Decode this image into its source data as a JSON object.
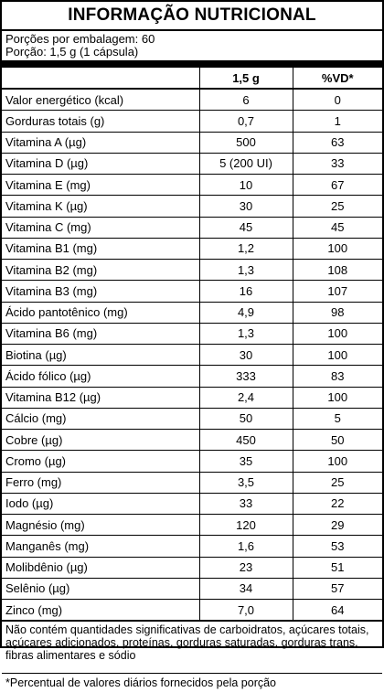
{
  "title": "INFORMAÇÃO NUTRICIONAL",
  "servings_per_package": "Porções por embalagem: 60",
  "serving_size": "Porção: 1,5 g (1 cápsula)",
  "header": {
    "amount": "1,5 g",
    "dv": "%VD*"
  },
  "rows": [
    {
      "name": "Valor energético (kcal)",
      "amount": "6",
      "dv": "0"
    },
    {
      "name": "Gorduras totais (g)",
      "amount": "0,7",
      "dv": "1"
    },
    {
      "name": "Vitamina A (µg)",
      "amount": "500",
      "dv": "63"
    },
    {
      "name": "Vitamina D (µg)",
      "amount": "5 (200 UI)",
      "dv": "33"
    },
    {
      "name": "Vitamina E (mg)",
      "amount": "10",
      "dv": "67"
    },
    {
      "name": "Vitamina K (µg)",
      "amount": "30",
      "dv": "25"
    },
    {
      "name": "Vitamina C (mg)",
      "amount": "45",
      "dv": "45"
    },
    {
      "name": "Vitamina B1 (mg)",
      "amount": "1,2",
      "dv": "100"
    },
    {
      "name": "Vitamina B2 (mg)",
      "amount": "1,3",
      "dv": "108"
    },
    {
      "name": "Vitamina B3 (mg)",
      "amount": "16",
      "dv": "107"
    },
    {
      "name": "Ácido pantotênico (mg)",
      "amount": "4,9",
      "dv": "98"
    },
    {
      "name": "Vitamina B6 (mg)",
      "amount": "1,3",
      "dv": "100"
    },
    {
      "name": "Biotina (µg)",
      "amount": "30",
      "dv": "100"
    },
    {
      "name": "Ácido fólico (µg)",
      "amount": "333",
      "dv": "83"
    },
    {
      "name": "Vitamina B12 (µg)",
      "amount": "2,4",
      "dv": "100"
    },
    {
      "name": "Cálcio (mg)",
      "amount": "50",
      "dv": "5"
    },
    {
      "name": "Cobre (µg)",
      "amount": "450",
      "dv": "50"
    },
    {
      "name": "Cromo (µg)",
      "amount": "35",
      "dv": "100"
    },
    {
      "name": "Ferro (mg)",
      "amount": "3,5",
      "dv": "25"
    },
    {
      "name": "Iodo (µg)",
      "amount": "33",
      "dv": "22"
    },
    {
      "name": "Magnésio (mg)",
      "amount": "120",
      "dv": "29"
    },
    {
      "name": "Manganês (mg)",
      "amount": "1,6",
      "dv": "53"
    },
    {
      "name": "Molibdênio (µg)",
      "amount": "23",
      "dv": "51"
    },
    {
      "name": "Selênio (µg)",
      "amount": "34",
      "dv": "57"
    },
    {
      "name": "Zinco (mg)",
      "amount": "7,0",
      "dv": "64"
    }
  ],
  "footnote": "Não contém quantidades significativas de carboidratos, açúcares totais, açúcares adicionados, proteínas, gorduras saturadas, gorduras trans, fibras alimentares e sódio",
  "dv_note": "*Percentual de valores diários fornecidos pela porção"
}
